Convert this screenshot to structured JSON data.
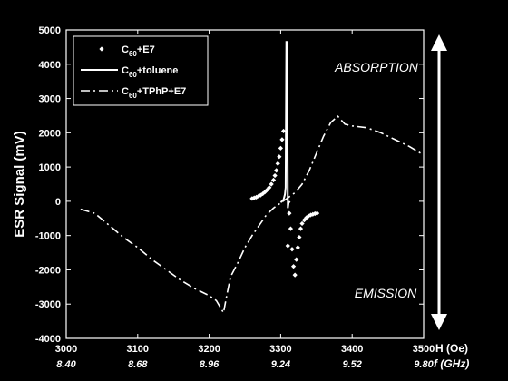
{
  "chart_data": {
    "type": "line",
    "xlabel": "H (Oe)",
    "x2label": "f (GHz)",
    "ylabel": "ESR Signal (mV)",
    "xlim": [
      3000,
      3500
    ],
    "ylim": [
      -4000,
      5000
    ],
    "xticks": [
      3000,
      3100,
      3200,
      3300,
      3400,
      3500
    ],
    "x2ticklabels": [
      "8.40",
      "8.68",
      "8.96",
      "9.24",
      "9.52",
      "9.80"
    ],
    "yticks": [
      -4000,
      -3000,
      -2000,
      -1000,
      0,
      1000,
      2000,
      3000,
      4000,
      5000
    ],
    "annotations": {
      "absorption": "ABSORPTION",
      "emission": "EMISSION"
    },
    "legend_position": "top-left",
    "grid": false,
    "series": [
      {
        "name": "C60+E7",
        "legend": {
          "prefix": "C",
          "sub": "60",
          "suffix": "+E7"
        },
        "style": "markers",
        "points": [
          [
            3260,
            80
          ],
          [
            3263,
            100
          ],
          [
            3266,
            120
          ],
          [
            3269,
            150
          ],
          [
            3272,
            180
          ],
          [
            3275,
            220
          ],
          [
            3278,
            270
          ],
          [
            3281,
            330
          ],
          [
            3284,
            400
          ],
          [
            3287,
            500
          ],
          [
            3290,
            620
          ],
          [
            3292,
            750
          ],
          [
            3294,
            900
          ],
          [
            3296,
            1100
          ],
          [
            3298,
            1300
          ],
          [
            3300,
            1550
          ],
          [
            3302,
            1800
          ],
          [
            3304,
            2050
          ],
          [
            3310,
            -1300
          ],
          [
            3312,
            -350
          ],
          [
            3314,
            -800
          ],
          [
            3316,
            -1400
          ],
          [
            3318,
            -1900
          ],
          [
            3320,
            -2150
          ],
          [
            3322,
            -1700
          ],
          [
            3324,
            -1350
          ],
          [
            3326,
            -1050
          ],
          [
            3328,
            -800
          ],
          [
            3330,
            -650
          ],
          [
            3333,
            -550
          ],
          [
            3336,
            -480
          ],
          [
            3339,
            -430
          ],
          [
            3342,
            -400
          ],
          [
            3345,
            -380
          ],
          [
            3348,
            -360
          ],
          [
            3351,
            -350
          ]
        ]
      },
      {
        "name": "C60+toluene",
        "legend": {
          "prefix": "C",
          "sub": "60",
          "suffix": "+toluene"
        },
        "style": "solid",
        "points": [
          [
            3300,
            -30
          ],
          [
            3302,
            0
          ],
          [
            3304,
            50
          ],
          [
            3306,
            200
          ],
          [
            3307,
            400
          ],
          [
            3308,
            4650
          ],
          [
            3309,
            4650
          ],
          [
            3310,
            -200
          ],
          [
            3311,
            -50
          ],
          [
            3313,
            0
          ]
        ]
      },
      {
        "name": "C60+TPhP+E7",
        "legend": {
          "prefix": "C",
          "sub": "60",
          "suffix": "+TPhP+E7"
        },
        "style": "dashdot",
        "points": [
          [
            3020,
            -230
          ],
          [
            3040,
            -350
          ],
          [
            3060,
            -700
          ],
          [
            3080,
            -1050
          ],
          [
            3100,
            -1350
          ],
          [
            3120,
            -1700
          ],
          [
            3140,
            -2000
          ],
          [
            3160,
            -2300
          ],
          [
            3180,
            -2550
          ],
          [
            3200,
            -2750
          ],
          [
            3210,
            -2900
          ],
          [
            3220,
            -3250
          ],
          [
            3225,
            -2700
          ],
          [
            3230,
            -2200
          ],
          [
            3240,
            -1800
          ],
          [
            3250,
            -1350
          ],
          [
            3260,
            -1000
          ],
          [
            3270,
            -700
          ],
          [
            3280,
            -400
          ],
          [
            3290,
            -200
          ],
          [
            3300,
            -50
          ],
          [
            3310,
            100
          ],
          [
            3320,
            250
          ],
          [
            3330,
            500
          ],
          [
            3340,
            900
          ],
          [
            3350,
            1400
          ],
          [
            3360,
            1900
          ],
          [
            3370,
            2300
          ],
          [
            3380,
            2480
          ],
          [
            3390,
            2250
          ],
          [
            3400,
            2200
          ],
          [
            3420,
            2150
          ],
          [
            3440,
            2000
          ],
          [
            3460,
            1800
          ],
          [
            3480,
            1600
          ],
          [
            3500,
            1350
          ]
        ]
      }
    ]
  }
}
